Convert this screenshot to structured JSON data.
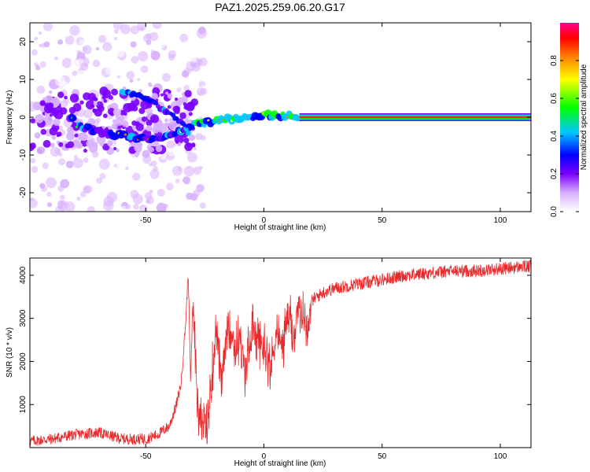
{
  "title": "PAZ1.2025.259.06.20.G17",
  "colors": {
    "snr_line": "#e8292b",
    "ridge_center": "#e8292b",
    "axis": "#000000"
  },
  "chart_data": [
    {
      "type": "heatmap",
      "title": "PAZ1.2025.259.06.20.G17",
      "xlabel": "Height of straight line (km)",
      "ylabel": "Frequency (Hz)",
      "xlim": [
        -99,
        113
      ],
      "ylim": [
        -25,
        25
      ],
      "xticks": [
        -50,
        0,
        50,
        100
      ],
      "yticks": [
        -20,
        -10,
        0,
        10,
        20
      ],
      "colorbar": {
        "label": "Normalized spectral amplitude",
        "range": [
          0,
          1
        ],
        "ticks": [
          "0.0",
          "0.2",
          "0.4",
          "0.6",
          "0.8"
        ],
        "colors": [
          "#ffffff",
          "#a000ff",
          "#0000ff",
          "#00c8ff",
          "#00ff00",
          "#ffff00",
          "#ff8000",
          "#ff0000",
          "#ff0090"
        ]
      },
      "ridge_frequency": [
        {
          "x": -80,
          "y": -2
        },
        {
          "x": -70,
          "y": -4
        },
        {
          "x": -60,
          "y": -5
        },
        {
          "x": -50,
          "y": -6
        },
        {
          "x": -40,
          "y": -5
        },
        {
          "x": -30,
          "y": -2
        },
        {
          "x": -20,
          "y": -1
        },
        {
          "x": -10,
          "y": 0
        },
        {
          "x": 0,
          "y": 0.5
        },
        {
          "x": 10,
          "y": 0.5
        },
        {
          "x": 15,
          "y": 0.2
        },
        {
          "x": 113,
          "y": 0
        }
      ],
      "upper_branch": [
        {
          "x": -60,
          "y": 7
        },
        {
          "x": -50,
          "y": 5
        },
        {
          "x": -45,
          "y": 3
        },
        {
          "x": -40,
          "y": 1
        },
        {
          "x": -35,
          "y": -1
        },
        {
          "x": -32,
          "y": -4
        }
      ]
    },
    {
      "type": "line",
      "xlabel": "Height of straight line (km)",
      "ylabel": "SNR (10 * v/v)",
      "xlim": [
        -99,
        113
      ],
      "ylim": [
        0,
        4400
      ],
      "xticks": [
        -50,
        0,
        50,
        100
      ],
      "yticks": [
        1000,
        2000,
        3000,
        4000
      ],
      "series": [
        {
          "x": [
            -99,
            -90,
            -80,
            -70,
            -60,
            -50,
            -45,
            -40,
            -37,
            -35,
            -33,
            -32,
            -31,
            -30,
            -28,
            -26,
            -24,
            -22,
            -20,
            -18,
            -15,
            -12,
            -10,
            -8,
            -5,
            -3,
            0,
            3,
            5,
            8,
            10,
            13,
            15,
            18,
            20,
            25,
            30,
            40,
            50,
            60,
            70,
            80,
            90,
            100,
            110,
            113
          ],
          "y": [
            150,
            200,
            300,
            350,
            200,
            200,
            300,
            500,
            1000,
            1500,
            3000,
            4100,
            1500,
            3500,
            900,
            600,
            400,
            1700,
            2800,
            1400,
            3000,
            2300,
            2600,
            1700,
            2800,
            2500,
            2400,
            1800,
            2700,
            2300,
            3100,
            2600,
            3200,
            2900,
            3400,
            3600,
            3700,
            3800,
            3900,
            4000,
            4050,
            4100,
            4100,
            4150,
            4200,
            4200
          ]
        }
      ]
    }
  ]
}
